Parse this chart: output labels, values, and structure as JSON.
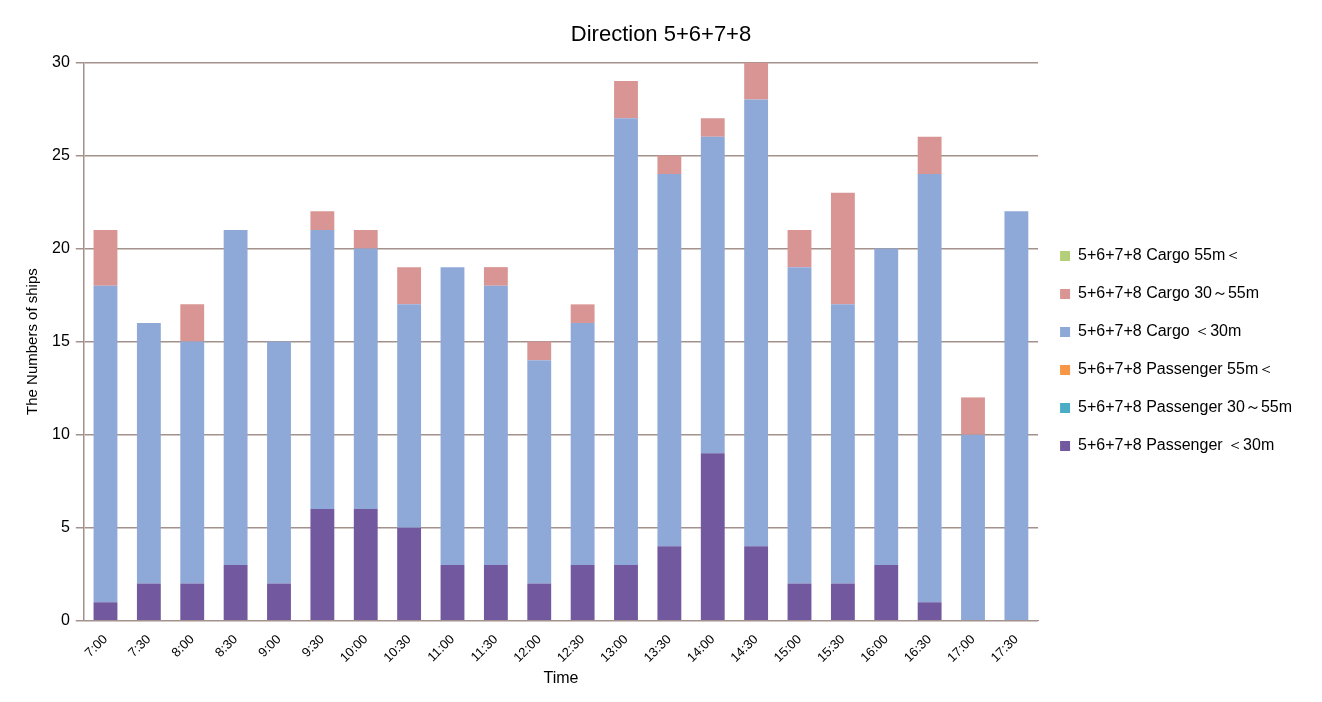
{
  "chart_data": {
    "type": "bar",
    "title": "Direction 5+6+7+8",
    "xlabel": "Time",
    "ylabel": "The Numbers of ships",
    "categories": [
      "7:00",
      "7:30",
      "8:00",
      "8:30",
      "9:00",
      "9:30",
      "10:00",
      "10:30",
      "11:00",
      "11:30",
      "12:00",
      "12:30",
      "13:00",
      "13:30",
      "14:00",
      "14:30",
      "15:00",
      "15:30",
      "16:00",
      "16:30",
      "17:00",
      "17:30"
    ],
    "series": [
      {
        "name": "5+6+7+8 Passenger ＜30m",
        "color": "#71589f",
        "values": [
          1,
          2,
          2,
          3,
          2,
          6,
          6,
          5,
          3,
          3,
          2,
          3,
          3,
          4,
          9,
          4,
          2,
          2,
          3,
          1,
          0,
          0
        ]
      },
      {
        "name": "5+6+7+8 Passenger 30～55m",
        "color": "#4bacc6",
        "values": [
          0,
          0,
          0,
          0,
          0,
          0,
          0,
          0,
          0,
          0,
          0,
          0,
          0,
          0,
          0,
          0,
          0,
          0,
          0,
          0,
          0,
          0
        ]
      },
      {
        "name": "5+6+7+8 Passenger 55m＜",
        "color": "#f79646",
        "values": [
          0,
          0,
          0,
          0,
          0,
          0,
          0,
          0,
          0,
          0,
          0,
          0,
          0,
          0,
          0,
          0,
          0,
          0,
          0,
          0,
          0,
          0
        ]
      },
      {
        "name": "5+6+7+8 Cargo ＜30m",
        "color": "#8ea8d8",
        "values": [
          17,
          14,
          13,
          18,
          13,
          15,
          14,
          12,
          16,
          15,
          12,
          13,
          24,
          20,
          17,
          24,
          17,
          15,
          17,
          23,
          10,
          22
        ]
      },
      {
        "name": "5+6+7+8 Cargo 30～55m",
        "color": "#d99594",
        "values": [
          3,
          0,
          2,
          0,
          0,
          1,
          1,
          2,
          0,
          1,
          1,
          1,
          2,
          1,
          1,
          2,
          2,
          6,
          0,
          2,
          2,
          0
        ]
      },
      {
        "name": "5+6+7+8 Cargo 55m＜",
        "color": "#b3cf78",
        "values": [
          0,
          0,
          0,
          0,
          0,
          0,
          0,
          0,
          0,
          0,
          0,
          0,
          0,
          0,
          0,
          0,
          0,
          0,
          0,
          0,
          0,
          0
        ]
      }
    ],
    "stacked": true,
    "ylim": [
      0,
      30
    ],
    "yticks": [
      0,
      5,
      10,
      15,
      20,
      25,
      30
    ],
    "grid": "y",
    "legend": "right"
  }
}
